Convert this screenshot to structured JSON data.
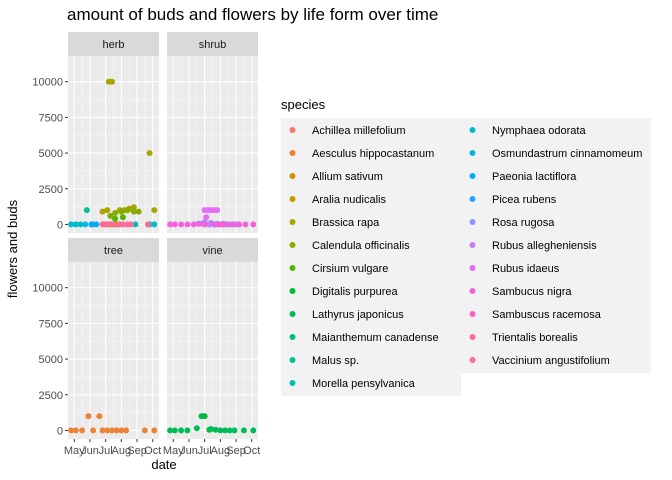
{
  "chart_data": {
    "type": "scatter",
    "title": "amount of buds and flowers by life form over time",
    "xlabel": "date",
    "ylabel": "flowers and buds",
    "x_ticks": [
      "May",
      "Jun",
      "Jul",
      "Aug",
      "Sep",
      "Oct"
    ],
    "y_ticks": [
      "0",
      "2500",
      "5000",
      "7500",
      "10000"
    ],
    "ylim": [
      -600,
      11800
    ],
    "xlim": [
      4.6,
      10.4
    ],
    "grid": true,
    "legend_title": "species",
    "legend_position": "right",
    "series": [
      {
        "name": "Achillea millefolium",
        "color": "#F8766D",
        "facet": "herb",
        "points": [
          [
            5.1,
            0
          ],
          [
            6.2,
            0
          ],
          [
            6.8,
            0
          ],
          [
            7.9,
            0
          ]
        ]
      },
      {
        "name": "Aesculus hippocastanum",
        "color": "#EB8335",
        "facet": "tree",
        "points": [
          [
            4.8,
            0
          ],
          [
            5.1,
            0
          ],
          [
            5.5,
            0
          ],
          [
            5.9,
            1000
          ],
          [
            6.2,
            0
          ],
          [
            6.6,
            1000
          ],
          [
            6.8,
            0
          ],
          [
            7.1,
            0
          ],
          [
            7.4,
            0
          ],
          [
            7.7,
            0
          ],
          [
            8.0,
            0
          ],
          [
            8.3,
            0
          ],
          [
            9.5,
            0
          ],
          [
            10.1,
            0
          ]
        ]
      },
      {
        "name": "Allium sativum",
        "color": "#DA8F00",
        "facet": "herb",
        "points": [
          [
            7.4,
            0
          ],
          [
            7.7,
            0
          ]
        ]
      },
      {
        "name": "Aralia nudicalis",
        "color": "#C49A00",
        "facet": "herb",
        "points": [
          [
            7.0,
            0
          ],
          [
            7.3,
            0
          ],
          [
            7.6,
            0
          ]
        ]
      },
      {
        "name": "Brassica rapa",
        "color": "#A9A400",
        "facet": "herb",
        "points": [
          [
            7.2,
            10000
          ],
          [
            7.4,
            10000
          ],
          [
            6.8,
            900
          ],
          [
            7.1,
            1000
          ],
          [
            7.9,
            1000
          ],
          [
            8.2,
            1000
          ],
          [
            8.5,
            1100
          ],
          [
            8.8,
            1200
          ],
          [
            9.8,
            5000
          ],
          [
            10.1,
            1000
          ]
        ]
      },
      {
        "name": "Calendula officinalis",
        "color": "#86AC00",
        "facet": "herb",
        "points": [
          [
            7.3,
            600
          ],
          [
            7.6,
            800
          ],
          [
            8.0,
            900
          ],
          [
            8.4,
            1000
          ],
          [
            8.8,
            900
          ],
          [
            9.1,
            900
          ]
        ]
      },
      {
        "name": "Cirsium vulgare",
        "color": "#53B400",
        "facet": "herb",
        "points": [
          [
            7.6,
            400
          ],
          [
            8.1,
            500
          ]
        ]
      },
      {
        "name": "Digitalis purpurea",
        "color": "#00BA38",
        "facet": "vine",
        "points": [
          [
            6.8,
            1000
          ],
          [
            7.0,
            1000
          ],
          [
            7.3,
            50
          ]
        ]
      },
      {
        "name": "Lathyrus japonicus",
        "color": "#00BC56",
        "facet": "vine",
        "points": [
          [
            4.8,
            0
          ],
          [
            5.1,
            0
          ],
          [
            5.5,
            0
          ],
          [
            5.9,
            0
          ],
          [
            6.5,
            150
          ],
          [
            7.4,
            100
          ],
          [
            7.7,
            50
          ],
          [
            8.0,
            0
          ],
          [
            8.3,
            0
          ],
          [
            8.6,
            0
          ],
          [
            8.9,
            0
          ],
          [
            9.5,
            0
          ],
          [
            10.1,
            0
          ]
        ]
      },
      {
        "name": "Maianthemum canadense",
        "color": "#00BF76",
        "facet": "herb",
        "points": [
          [
            7.1,
            0
          ],
          [
            7.5,
            0
          ]
        ]
      },
      {
        "name": "Malus sp.",
        "color": "#00C094",
        "facet": "herb",
        "points": [
          [
            5.8,
            1000
          ],
          [
            6.1,
            0
          ]
        ]
      },
      {
        "name": "Morella pensylvanica",
        "color": "#00C0B1",
        "facet": "herb",
        "points": [
          [
            8.9,
            0
          ]
        ]
      },
      {
        "name": "Nymphaea odorata",
        "color": "#00BCCB",
        "facet": "herb",
        "points": [
          [
            4.8,
            0
          ],
          [
            5.1,
            0
          ],
          [
            5.4,
            0
          ],
          [
            9.8,
            0
          ],
          [
            10.1,
            0
          ]
        ]
      },
      {
        "name": "Osmundastrum cinnamomeum",
        "color": "#00B6E2",
        "facet": "herb",
        "points": [
          [
            5.7,
            0
          ]
        ]
      },
      {
        "name": "Paeonia lactiflora",
        "color": "#00ABF6",
        "facet": "herb",
        "points": [
          [
            6.1,
            0
          ],
          [
            6.4,
            0
          ]
        ]
      },
      {
        "name": "Picea rubens",
        "color": "#2C9FFF",
        "facet": "shrub",
        "points": [
          [
            7.0,
            0
          ],
          [
            7.3,
            0
          ],
          [
            7.6,
            0
          ],
          [
            7.9,
            0
          ],
          [
            8.2,
            0
          ]
        ]
      },
      {
        "name": "Rosa rugosa",
        "color": "#8F91FF",
        "facet": "shrub",
        "points": [
          [
            6.6,
            50
          ],
          [
            7.0,
            150
          ],
          [
            7.4,
            100
          ],
          [
            7.8,
            50
          ],
          [
            8.2,
            50
          ],
          [
            8.6,
            0
          ],
          [
            9.0,
            0
          ]
        ]
      },
      {
        "name": "Rubus allegheniensis",
        "color": "#C77CFF",
        "facet": "shrub",
        "points": [
          [
            7.3,
            0
          ],
          [
            7.7,
            0
          ]
        ]
      },
      {
        "name": "Rubus idaeus",
        "color": "#E46DF6",
        "facet": "shrub",
        "points": [
          [
            7.0,
            1000
          ],
          [
            7.2,
            1000
          ],
          [
            7.4,
            1000
          ],
          [
            7.6,
            1000
          ],
          [
            7.8,
            1000
          ],
          [
            7.1,
            500
          ]
        ]
      },
      {
        "name": "Sambucus nigra",
        "color": "#F561DD",
        "facet": "shrub",
        "points": [
          [
            4.8,
            0
          ],
          [
            5.1,
            0
          ],
          [
            5.5,
            0
          ],
          [
            5.9,
            0
          ],
          [
            6.3,
            0
          ],
          [
            6.7,
            50
          ],
          [
            7.0,
            0
          ],
          [
            7.6,
            0
          ],
          [
            8.0,
            0
          ],
          [
            8.4,
            0
          ],
          [
            8.8,
            0
          ],
          [
            9.2,
            0
          ],
          [
            9.6,
            0
          ],
          [
            10.1,
            0
          ]
        ]
      },
      {
        "name": "Sambuscus racemosa",
        "color": "#FD61C4",
        "facet": "shrub",
        "points": [
          [
            8.1,
            0
          ]
        ]
      },
      {
        "name": "Trientalis borealis",
        "color": "#FF67A4",
        "facet": "herb",
        "points": [
          [
            6.9,
            0
          ],
          [
            7.4,
            0
          ],
          [
            7.9,
            0
          ],
          [
            8.4,
            0
          ]
        ]
      },
      {
        "name": "Vaccinium angustifolium",
        "color": "#FF6C91",
        "facet": "herb",
        "points": [
          [
            7.1,
            0
          ],
          [
            7.5,
            0
          ],
          [
            8.1,
            0
          ],
          [
            8.6,
            0
          ],
          [
            9.7,
            0
          ]
        ]
      }
    ],
    "facets": [
      "herb",
      "shrub",
      "tree",
      "vine"
    ]
  }
}
